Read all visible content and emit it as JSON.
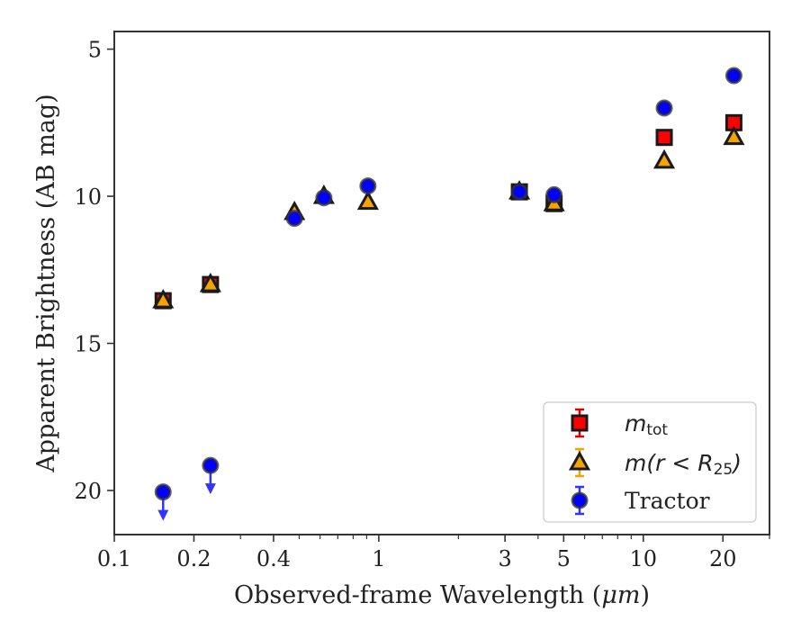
{
  "chart_data": {
    "type": "scatter",
    "xlabel_prefix": "Observed-frame Wavelength (",
    "xlabel_unit": "μm",
    "xlabel_suffix": ")",
    "ylabel": "Apparent Brightness (AB mag)",
    "x_scale": "log",
    "xlim": [
      0.1,
      30
    ],
    "ylim": [
      21.5,
      4.4
    ],
    "y_inverted": true,
    "grid": false,
    "legend_position": "bottom-right",
    "x_ticks": [
      {
        "value": 0.1,
        "label": "0.1"
      },
      {
        "value": 0.2,
        "label": "0.2"
      },
      {
        "value": 0.4,
        "label": "0.4"
      },
      {
        "value": 1,
        "label": "1"
      },
      {
        "value": 3,
        "label": "3"
      },
      {
        "value": 5,
        "label": "5"
      },
      {
        "value": 10,
        "label": "10"
      },
      {
        "value": 20,
        "label": "20"
      }
    ],
    "x_minor_ticks": [
      0.3,
      0.5,
      0.6,
      0.7,
      0.8,
      0.9,
      2,
      4,
      6,
      7,
      8,
      9,
      30
    ],
    "y_ticks": [
      {
        "value": 5,
        "label": "5"
      },
      {
        "value": 10,
        "label": "10"
      },
      {
        "value": 15,
        "label": "15"
      },
      {
        "value": 20,
        "label": "20"
      }
    ],
    "series": [
      {
        "key": "mtot",
        "legend_base": "m",
        "legend_sub": "tot",
        "marker": "square",
        "color": "#ff0000",
        "errcolor": "#dd0000",
        "points": [
          {
            "x": 0.153,
            "y": 13.55
          },
          {
            "x": 0.231,
            "y": 13.0
          },
          {
            "x": 3.4,
            "y": 9.85
          },
          {
            "x": 4.6,
            "y": 10.25
          },
          {
            "x": 12.0,
            "y": 8.0
          },
          {
            "x": 22.0,
            "y": 7.5
          }
        ]
      },
      {
        "key": "mr25",
        "legend_pre": "m(r < R",
        "legend_sub": "25",
        "legend_post": ")",
        "marker": "triangle",
        "color": "#f5a300",
        "errcolor": "#f0a500",
        "points": [
          {
            "x": 0.153,
            "y": 13.55
          },
          {
            "x": 0.231,
            "y": 13.0
          },
          {
            "x": 0.48,
            "y": 10.55
          },
          {
            "x": 0.62,
            "y": 10.0
          },
          {
            "x": 0.91,
            "y": 10.2
          },
          {
            "x": 3.4,
            "y": 9.85
          },
          {
            "x": 4.6,
            "y": 10.25
          },
          {
            "x": 12.0,
            "y": 8.8
          },
          {
            "x": 22.0,
            "y": 8.0
          }
        ]
      },
      {
        "key": "tractor",
        "legend_base": "Tractor",
        "marker": "circle",
        "color": "#0000ff",
        "errcolor": "#3333ff",
        "points": [
          {
            "x": 0.153,
            "y": 20.05,
            "upper_limit": true
          },
          {
            "x": 0.231,
            "y": 19.15,
            "upper_limit": true
          },
          {
            "x": 0.48,
            "y": 10.75
          },
          {
            "x": 0.62,
            "y": 10.05
          },
          {
            "x": 0.91,
            "y": 9.65
          },
          {
            "x": 3.4,
            "y": 9.85
          },
          {
            "x": 4.6,
            "y": 9.95
          },
          {
            "x": 12.0,
            "y": 7.0
          },
          {
            "x": 22.0,
            "y": 5.9
          }
        ]
      }
    ]
  }
}
